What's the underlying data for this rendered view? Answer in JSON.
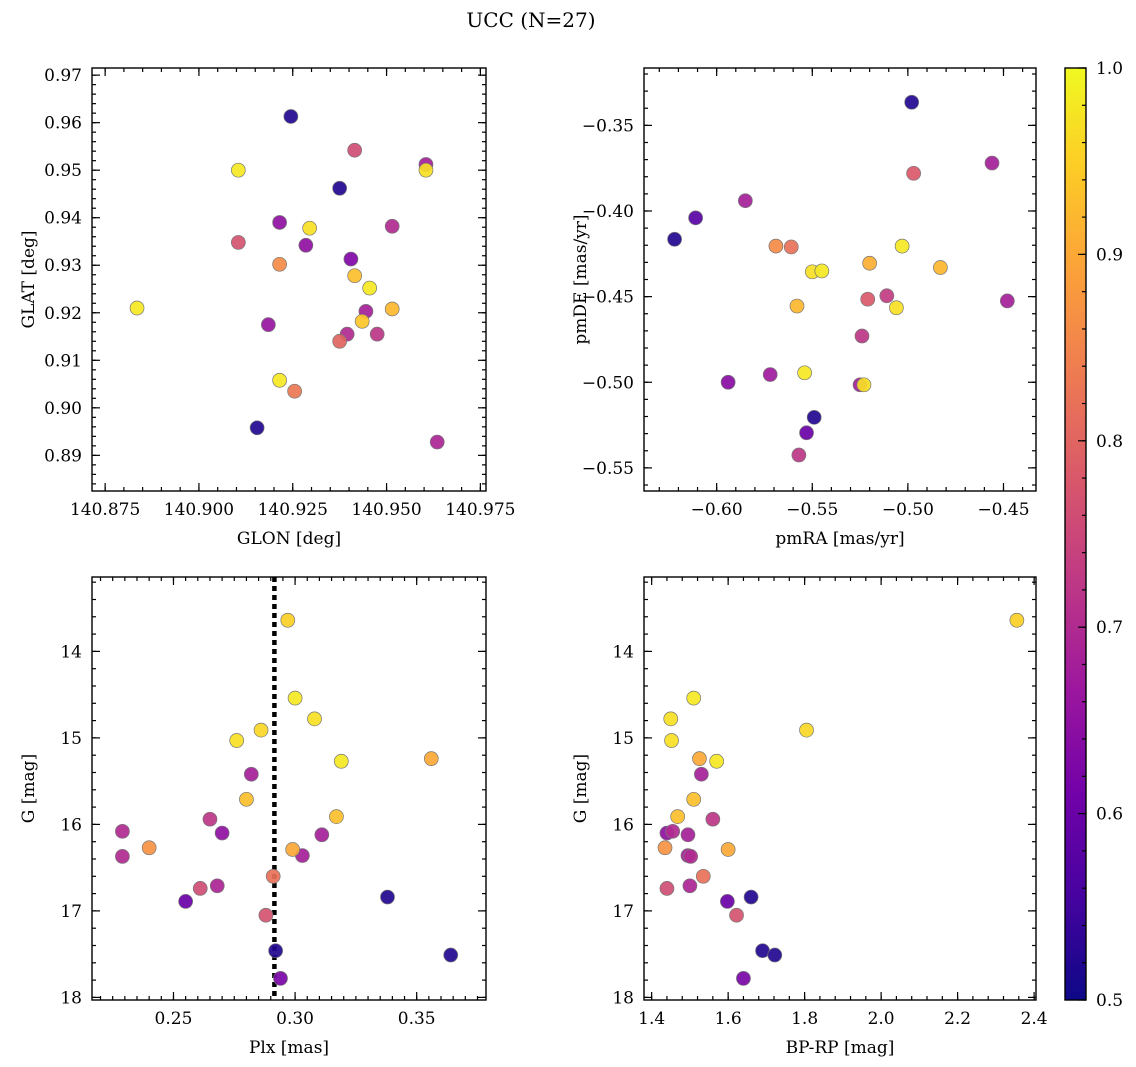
{
  "figure": {
    "title": "UCC (N=27)"
  },
  "colorbar": {
    "min": 0.5,
    "max": 1.0,
    "ticks": [
      0.5,
      0.6,
      0.7,
      0.8,
      0.9,
      1.0
    ],
    "tick_labels": [
      "0.5",
      "0.6",
      "0.7",
      "0.8",
      "0.9",
      "1.0"
    ],
    "colormap": "plasma",
    "stops": [
      "#0d0887",
      "#46039f",
      "#7201a8",
      "#9c179e",
      "#bd3786",
      "#d8576b",
      "#ed7953",
      "#fb9f3a",
      "#fdca26",
      "#f0f921"
    ]
  },
  "chart_data": [
    {
      "type": "scatter",
      "name": "glon-glat",
      "xlabel": "GLON [deg]",
      "ylabel": "GLAT [deg]",
      "xlim": [
        140.8715,
        140.9765
      ],
      "ylim": [
        0.8825,
        0.9715
      ],
      "y_inverted": false,
      "xticks": [
        140.875,
        140.9,
        140.925,
        140.95,
        140.975
      ],
      "xtick_labels": [
        "140.875",
        "140.900",
        "140.925",
        "140.950",
        "140.975"
      ],
      "yticks": [
        0.89,
        0.9,
        0.91,
        0.92,
        0.93,
        0.94,
        0.95,
        0.96,
        0.97
      ],
      "ytick_labels": [
        "0.89",
        "0.90",
        "0.91",
        "0.92",
        "0.93",
        "0.94",
        "0.95",
        "0.96",
        "0.97"
      ],
      "xminor": 0.005,
      "yminor": 0.002,
      "points": [
        {
          "x": 140.8835,
          "y": 0.921,
          "c": 0.98
        },
        {
          "x": 140.9105,
          "y": 0.95,
          "c": 0.98
        },
        {
          "x": 140.9105,
          "y": 0.9348,
          "c": 0.77
        },
        {
          "x": 140.9155,
          "y": 0.8958,
          "c": 0.52
        },
        {
          "x": 140.9185,
          "y": 0.9175,
          "c": 0.66
        },
        {
          "x": 140.9215,
          "y": 0.939,
          "c": 0.65
        },
        {
          "x": 140.9215,
          "y": 0.9302,
          "c": 0.86
        },
        {
          "x": 140.9215,
          "y": 0.9058,
          "c": 0.98
        },
        {
          "x": 140.9245,
          "y": 0.9613,
          "c": 0.52
        },
        {
          "x": 140.9255,
          "y": 0.9035,
          "c": 0.83
        },
        {
          "x": 140.9285,
          "y": 0.9342,
          "c": 0.65
        },
        {
          "x": 140.9295,
          "y": 0.9378,
          "c": 0.97
        },
        {
          "x": 140.9375,
          "y": 0.9462,
          "c": 0.52
        },
        {
          "x": 140.9375,
          "y": 0.914,
          "c": 0.8
        },
        {
          "x": 140.9395,
          "y": 0.9155,
          "c": 0.7
        },
        {
          "x": 140.9405,
          "y": 0.9313,
          "c": 0.63
        },
        {
          "x": 140.9415,
          "y": 0.9278,
          "c": 0.93
        },
        {
          "x": 140.9415,
          "y": 0.9542,
          "c": 0.76
        },
        {
          "x": 140.9435,
          "y": 0.9182,
          "c": 0.94
        },
        {
          "x": 140.9445,
          "y": 0.9203,
          "c": 0.68
        },
        {
          "x": 140.9455,
          "y": 0.9252,
          "c": 0.98
        },
        {
          "x": 140.9475,
          "y": 0.9155,
          "c": 0.72
        },
        {
          "x": 140.9515,
          "y": 0.9208,
          "c": 0.92
        },
        {
          "x": 140.9515,
          "y": 0.9382,
          "c": 0.7
        },
        {
          "x": 140.9605,
          "y": 0.9512,
          "c": 0.68
        },
        {
          "x": 140.9605,
          "y": 0.95,
          "c": 0.97
        },
        {
          "x": 140.9635,
          "y": 0.8928,
          "c": 0.69
        }
      ]
    },
    {
      "type": "scatter",
      "name": "pmra-pmde",
      "xlabel": "pmRA [mas/yr]",
      "ylabel": "pmDE [mas/yr]",
      "xlim": [
        -0.638,
        -0.433
      ],
      "ylim": [
        -0.5635,
        -0.3165
      ],
      "y_inverted": false,
      "xticks": [
        -0.6,
        -0.55,
        -0.5,
        -0.45
      ],
      "xtick_labels": [
        "−0.60",
        "−0.55",
        "−0.50",
        "−0.45"
      ],
      "yticks": [
        -0.55,
        -0.5,
        -0.45,
        -0.4,
        -0.35
      ],
      "ytick_labels": [
        "−0.55",
        "−0.50",
        "−0.45",
        "−0.40",
        "−0.35"
      ],
      "xminor": 0.01,
      "yminor": 0.01,
      "points": [
        {
          "x": -0.622,
          "y": -0.4165,
          "c": 0.52
        },
        {
          "x": -0.611,
          "y": -0.404,
          "c": 0.58
        },
        {
          "x": -0.594,
          "y": -0.5,
          "c": 0.64
        },
        {
          "x": -0.585,
          "y": -0.394,
          "c": 0.68
        },
        {
          "x": -0.572,
          "y": -0.4955,
          "c": 0.67
        },
        {
          "x": -0.569,
          "y": -0.4205,
          "c": 0.86
        },
        {
          "x": -0.561,
          "y": -0.421,
          "c": 0.82
        },
        {
          "x": -0.558,
          "y": -0.4555,
          "c": 0.92
        },
        {
          "x": -0.557,
          "y": -0.5425,
          "c": 0.72
        },
        {
          "x": -0.554,
          "y": -0.4945,
          "c": 0.98
        },
        {
          "x": -0.553,
          "y": -0.5295,
          "c": 0.6
        },
        {
          "x": -0.55,
          "y": -0.4355,
          "c": 0.97
        },
        {
          "x": -0.549,
          "y": -0.5205,
          "c": 0.52
        },
        {
          "x": -0.545,
          "y": -0.435,
          "c": 0.98
        },
        {
          "x": -0.525,
          "y": -0.5015,
          "c": 0.68
        },
        {
          "x": -0.524,
          "y": -0.473,
          "c": 0.72
        },
        {
          "x": -0.523,
          "y": -0.5015,
          "c": 0.97
        },
        {
          "x": -0.521,
          "y": -0.4515,
          "c": 0.78
        },
        {
          "x": -0.52,
          "y": -0.4305,
          "c": 0.91
        },
        {
          "x": -0.511,
          "y": -0.4495,
          "c": 0.73
        },
        {
          "x": -0.506,
          "y": -0.4565,
          "c": 0.97
        },
        {
          "x": -0.503,
          "y": -0.4205,
          "c": 0.98
        },
        {
          "x": -0.498,
          "y": -0.3365,
          "c": 0.52
        },
        {
          "x": -0.497,
          "y": -0.378,
          "c": 0.78
        },
        {
          "x": -0.483,
          "y": -0.433,
          "c": 0.92
        },
        {
          "x": -0.456,
          "y": -0.372,
          "c": 0.68
        },
        {
          "x": -0.448,
          "y": -0.4525,
          "c": 0.68
        }
      ]
    },
    {
      "type": "scatter",
      "name": "plx-g",
      "xlabel": "Plx [mas]",
      "ylabel": "G [mag]",
      "xlim": [
        0.2165,
        0.3785
      ],
      "ylim": [
        18.03,
        13.14
      ],
      "y_inverted": true,
      "xticks": [
        0.25,
        0.3,
        0.35
      ],
      "xtick_labels": [
        "0.25",
        "0.30",
        "0.35"
      ],
      "yticks": [
        14,
        15,
        16,
        17,
        18
      ],
      "ytick_labels": [
        "14",
        "15",
        "16",
        "17",
        "18"
      ],
      "xminor": 0.005,
      "yminor": 0.2,
      "vline": 0.2915,
      "points": [
        {
          "x": 0.229,
          "y": 16.08,
          "c": 0.7
        },
        {
          "x": 0.229,
          "y": 16.37,
          "c": 0.7
        },
        {
          "x": 0.24,
          "y": 16.27,
          "c": 0.87
        },
        {
          "x": 0.255,
          "y": 16.89,
          "c": 0.6
        },
        {
          "x": 0.261,
          "y": 16.74,
          "c": 0.76
        },
        {
          "x": 0.265,
          "y": 15.94,
          "c": 0.72
        },
        {
          "x": 0.268,
          "y": 16.71,
          "c": 0.69
        },
        {
          "x": 0.27,
          "y": 16.1,
          "c": 0.65
        },
        {
          "x": 0.276,
          "y": 15.03,
          "c": 0.97
        },
        {
          "x": 0.28,
          "y": 15.71,
          "c": 0.93
        },
        {
          "x": 0.282,
          "y": 15.42,
          "c": 0.68
        },
        {
          "x": 0.286,
          "y": 14.91,
          "c": 0.96
        },
        {
          "x": 0.288,
          "y": 17.05,
          "c": 0.77
        },
        {
          "x": 0.291,
          "y": 16.6,
          "c": 0.82
        },
        {
          "x": 0.292,
          "y": 17.46,
          "c": 0.52
        },
        {
          "x": 0.294,
          "y": 17.78,
          "c": 0.62
        },
        {
          "x": 0.297,
          "y": 13.64,
          "c": 0.95
        },
        {
          "x": 0.299,
          "y": 16.29,
          "c": 0.9
        },
        {
          "x": 0.3,
          "y": 14.54,
          "c": 0.98
        },
        {
          "x": 0.303,
          "y": 16.36,
          "c": 0.68
        },
        {
          "x": 0.308,
          "y": 14.78,
          "c": 0.97
        },
        {
          "x": 0.311,
          "y": 16.12,
          "c": 0.68
        },
        {
          "x": 0.317,
          "y": 15.91,
          "c": 0.93
        },
        {
          "x": 0.319,
          "y": 15.27,
          "c": 0.98
        },
        {
          "x": 0.338,
          "y": 16.84,
          "c": 0.52
        },
        {
          "x": 0.356,
          "y": 15.24,
          "c": 0.9
        },
        {
          "x": 0.364,
          "y": 17.51,
          "c": 0.52
        }
      ]
    },
    {
      "type": "scatter",
      "name": "bprp-g",
      "xlabel": "BP-RP [mag]",
      "ylabel": "G [mag]",
      "xlim": [
        1.38,
        2.405
      ],
      "ylim": [
        18.03,
        13.14
      ],
      "y_inverted": true,
      "xticks": [
        1.4,
        1.6,
        1.8,
        2.0,
        2.2,
        2.4
      ],
      "xtick_labels": [
        "1.4",
        "1.6",
        "1.8",
        "2.0",
        "2.2",
        "2.4"
      ],
      "yticks": [
        14,
        15,
        16,
        17,
        18
      ],
      "ytick_labels": [
        "14",
        "15",
        "16",
        "17",
        "18"
      ],
      "xminor": 0.04,
      "yminor": 0.2,
      "points": [
        {
          "x": 1.435,
          "y": 16.27,
          "c": 0.87
        },
        {
          "x": 1.44,
          "y": 16.1,
          "c": 0.65
        },
        {
          "x": 1.44,
          "y": 16.74,
          "c": 0.76
        },
        {
          "x": 1.45,
          "y": 14.78,
          "c": 0.97
        },
        {
          "x": 1.452,
          "y": 15.03,
          "c": 0.97
        },
        {
          "x": 1.455,
          "y": 16.08,
          "c": 0.7
        },
        {
          "x": 1.468,
          "y": 15.91,
          "c": 0.93
        },
        {
          "x": 1.495,
          "y": 16.12,
          "c": 0.68
        },
        {
          "x": 1.495,
          "y": 16.36,
          "c": 0.68
        },
        {
          "x": 1.5,
          "y": 16.71,
          "c": 0.69
        },
        {
          "x": 1.502,
          "y": 16.37,
          "c": 0.7
        },
        {
          "x": 1.51,
          "y": 15.71,
          "c": 0.93
        },
        {
          "x": 1.51,
          "y": 14.54,
          "c": 0.98
        },
        {
          "x": 1.525,
          "y": 15.24,
          "c": 0.9
        },
        {
          "x": 1.53,
          "y": 15.42,
          "c": 0.68
        },
        {
          "x": 1.535,
          "y": 16.6,
          "c": 0.82
        },
        {
          "x": 1.56,
          "y": 15.94,
          "c": 0.72
        },
        {
          "x": 1.57,
          "y": 15.27,
          "c": 0.98
        },
        {
          "x": 1.6,
          "y": 16.29,
          "c": 0.9
        },
        {
          "x": 1.598,
          "y": 16.89,
          "c": 0.6
        },
        {
          "x": 1.622,
          "y": 17.05,
          "c": 0.77
        },
        {
          "x": 1.64,
          "y": 17.78,
          "c": 0.62
        },
        {
          "x": 1.66,
          "y": 16.84,
          "c": 0.52
        },
        {
          "x": 1.69,
          "y": 17.46,
          "c": 0.52
        },
        {
          "x": 1.722,
          "y": 17.51,
          "c": 0.52
        },
        {
          "x": 1.805,
          "y": 14.91,
          "c": 0.96
        },
        {
          "x": 2.355,
          "y": 13.64,
          "c": 0.95
        }
      ]
    }
  ]
}
